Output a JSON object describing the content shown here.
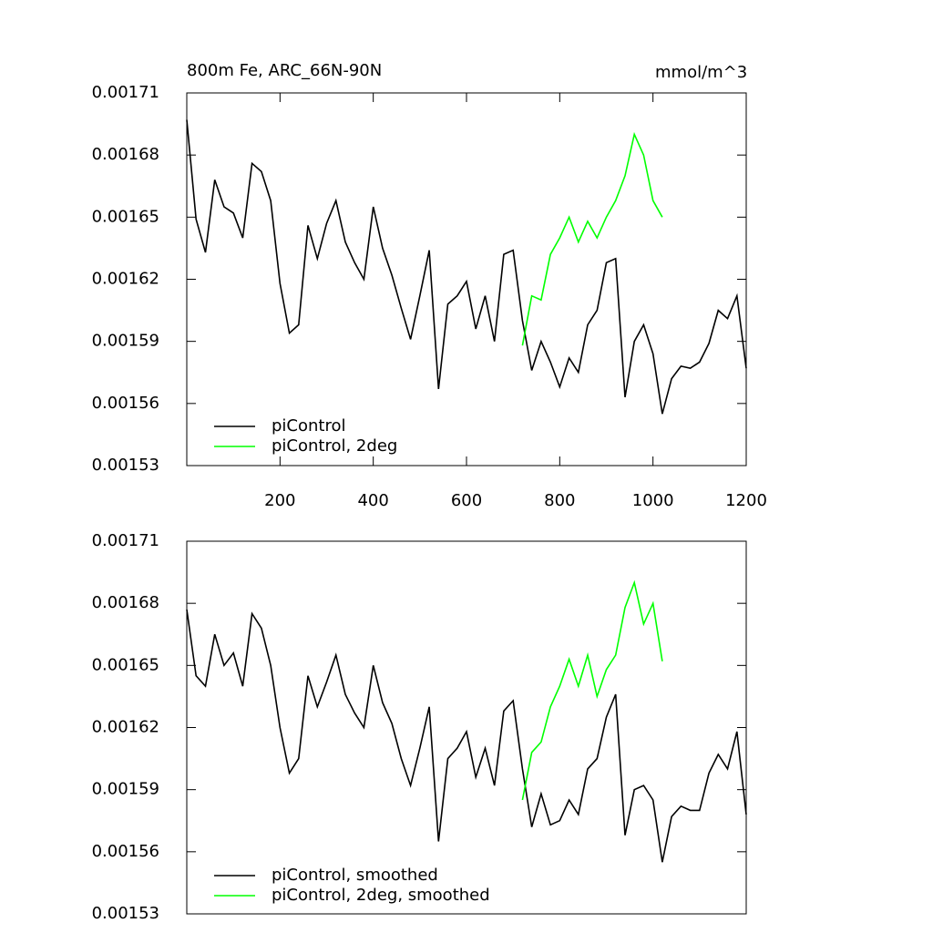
{
  "chart_data": [
    {
      "type": "line",
      "title": "800m Fe, ARC_66N-90N",
      "units": "mmol/m^3",
      "x": [
        0,
        20,
        40,
        60,
        80,
        100,
        120,
        140,
        160,
        180,
        200,
        220,
        240,
        260,
        280,
        300,
        320,
        340,
        360,
        380,
        400,
        420,
        440,
        460,
        480,
        500,
        520,
        540,
        560,
        580,
        600,
        620,
        640,
        660,
        680,
        700,
        720,
        740,
        760,
        780,
        800,
        820,
        840,
        860,
        880,
        900,
        920,
        940,
        960,
        980,
        1000,
        1020,
        1040,
        1060,
        1080,
        1100,
        1120,
        1140,
        1160,
        1180,
        1200
      ],
      "series": [
        {
          "name": "piControl",
          "color": "#000000",
          "values": [
            0.001697,
            0.001649,
            0.001633,
            0.001668,
            0.001655,
            0.001652,
            0.00164,
            0.001676,
            0.001672,
            0.001658,
            0.001618,
            0.001594,
            0.001598,
            0.001646,
            0.00163,
            0.001647,
            0.001658,
            0.001638,
            0.001628,
            0.00162,
            0.001655,
            0.001635,
            0.001622,
            0.001606,
            0.001591,
            0.001612,
            0.001634,
            0.001567,
            0.001608,
            0.001612,
            0.001619,
            0.001596,
            0.001612,
            0.00159,
            0.001632,
            0.001634,
            0.0016,
            0.001576,
            0.00159,
            0.00158,
            0.001568,
            0.001582,
            0.001575,
            0.001598,
            0.001605,
            0.001628,
            0.00163,
            0.001563,
            0.00159,
            0.001598,
            0.001584,
            0.001555,
            0.001572,
            0.001578,
            0.001577,
            0.00158,
            0.001589,
            0.001605,
            0.001601,
            0.001612,
            0.001577
          ]
        },
        {
          "name": "piControl, 2deg",
          "color": "#00ff00",
          "values": [
            null,
            null,
            null,
            null,
            null,
            null,
            null,
            null,
            null,
            null,
            null,
            null,
            null,
            null,
            null,
            null,
            null,
            null,
            null,
            null,
            null,
            null,
            null,
            null,
            null,
            null,
            null,
            null,
            null,
            null,
            null,
            null,
            null,
            null,
            null,
            null,
            0.001588,
            0.001612,
            0.00161,
            0.001632,
            0.00164,
            0.00165,
            0.001638,
            0.001648,
            0.00164,
            0.00165,
            0.001658,
            0.00167,
            0.00169,
            0.00168,
            0.001658,
            0.00165,
            null,
            null,
            null,
            null,
            null,
            null,
            null,
            null,
            null
          ]
        }
      ],
      "xlim": [
        0,
        1200
      ],
      "xticks": [
        200,
        400,
        600,
        800,
        1000,
        1200
      ],
      "ylim": [
        0.00153,
        0.00171
      ],
      "yticks": [
        0.00153,
        0.00156,
        0.00159,
        0.00162,
        0.00165,
        0.00168,
        0.00171
      ],
      "legend": "bottom-left"
    },
    {
      "type": "line",
      "x": [
        0,
        20,
        40,
        60,
        80,
        100,
        120,
        140,
        160,
        180,
        200,
        220,
        240,
        260,
        280,
        300,
        320,
        340,
        360,
        380,
        400,
        420,
        440,
        460,
        480,
        500,
        520,
        540,
        560,
        580,
        600,
        620,
        640,
        660,
        680,
        700,
        720,
        740,
        760,
        780,
        800,
        820,
        840,
        860,
        880,
        900,
        920,
        940,
        960,
        980,
        1000,
        1020,
        1040,
        1060,
        1080,
        1100,
        1120,
        1140,
        1160,
        1180,
        1200
      ],
      "series": [
        {
          "name": "piControl, smoothed",
          "color": "#000000",
          "values": [
            0.001677,
            0.001645,
            0.00164,
            0.001665,
            0.00165,
            0.001656,
            0.00164,
            0.001675,
            0.001668,
            0.00165,
            0.00162,
            0.001598,
            0.001605,
            0.001645,
            0.00163,
            0.001642,
            0.001655,
            0.001636,
            0.001627,
            0.00162,
            0.00165,
            0.001632,
            0.001622,
            0.001605,
            0.001592,
            0.00161,
            0.00163,
            0.001565,
            0.001605,
            0.00161,
            0.001618,
            0.001596,
            0.00161,
            0.001592,
            0.001628,
            0.001633,
            0.0016,
            0.001572,
            0.001588,
            0.001573,
            0.001575,
            0.001585,
            0.001578,
            0.0016,
            0.001605,
            0.001625,
            0.001636,
            0.001568,
            0.00159,
            0.001592,
            0.001585,
            0.001555,
            0.001577,
            0.001582,
            0.00158,
            0.00158,
            0.001598,
            0.001607,
            0.0016,
            0.001618,
            0.001578
          ]
        },
        {
          "name": "piControl, 2deg, smoothed",
          "color": "#00ff00",
          "values": [
            null,
            null,
            null,
            null,
            null,
            null,
            null,
            null,
            null,
            null,
            null,
            null,
            null,
            null,
            null,
            null,
            null,
            null,
            null,
            null,
            null,
            null,
            null,
            null,
            null,
            null,
            null,
            null,
            null,
            null,
            null,
            null,
            null,
            null,
            null,
            null,
            0.001585,
            0.001608,
            0.001613,
            0.00163,
            0.00164,
            0.001653,
            0.00164,
            0.001655,
            0.001635,
            0.001648,
            0.001655,
            0.001678,
            0.00169,
            0.00167,
            0.00168,
            0.001652,
            null,
            null,
            null,
            null,
            null,
            null,
            null,
            null,
            null
          ]
        }
      ],
      "xlim": [
        0,
        1200
      ],
      "ylim": [
        0.00153,
        0.00171
      ],
      "yticks": [
        0.00153,
        0.00156,
        0.00159,
        0.00162,
        0.00165,
        0.00168,
        0.00171
      ],
      "legend": "bottom-left"
    }
  ]
}
